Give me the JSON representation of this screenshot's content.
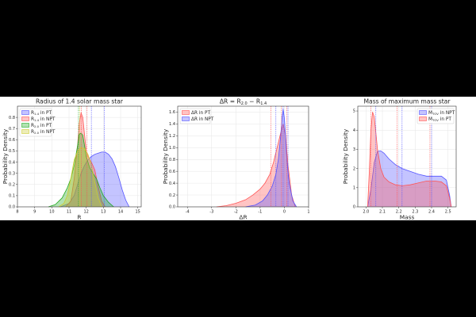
{
  "chart_data": [
    {
      "id": "p1",
      "type": "area",
      "title": "Radius of 1.4 solar mass star",
      "xlabel": "R",
      "ylabel": "Probability Density",
      "xlim": [
        8,
        15.2
      ],
      "ylim": [
        0,
        0.9
      ],
      "xticks": [
        8,
        9,
        10,
        11,
        12,
        13,
        14,
        15
      ],
      "yticks": [
        0.0,
        0.1,
        0.2,
        0.3,
        0.4,
        0.5,
        0.6,
        0.7,
        0.8
      ],
      "legend_position": "top-left",
      "grid": true,
      "series": [
        {
          "name": "R_{1.4} in PT",
          "label_base": "R",
          "label_sub": "1.4",
          "label_rest": " in PT",
          "color": "#5555ff",
          "x": [
            10.5,
            11.0,
            11.3,
            11.5,
            11.7,
            11.9,
            12.1,
            12.3,
            12.5,
            12.7,
            12.9,
            13.1,
            13.3,
            13.5,
            13.7,
            13.9,
            14.1,
            14.3,
            14.5
          ],
          "values": [
            0.0,
            0.03,
            0.1,
            0.2,
            0.3,
            0.37,
            0.42,
            0.45,
            0.47,
            0.48,
            0.49,
            0.49,
            0.47,
            0.43,
            0.36,
            0.26,
            0.15,
            0.06,
            0.0
          ]
        },
        {
          "name": "R_{1.4} in NPT",
          "label_base": "R",
          "label_sub": "1.4",
          "label_rest": " in NPT",
          "color": "#ff5555",
          "x": [
            10.8,
            11.1,
            11.3,
            11.5,
            11.6,
            11.7,
            11.8,
            11.9,
            12.0,
            12.1,
            12.3,
            12.5,
            12.7,
            12.9,
            13.1
          ],
          "values": [
            0.0,
            0.05,
            0.25,
            0.55,
            0.75,
            0.84,
            0.8,
            0.65,
            0.5,
            0.45,
            0.4,
            0.33,
            0.18,
            0.05,
            0.0
          ]
        },
        {
          "name": "R_{2.0} in PT",
          "label_base": "R",
          "label_sub": "2.0",
          "label_rest": " in PT",
          "color": "#22aa22",
          "x": [
            9.8,
            10.2,
            10.6,
            10.9,
            11.1,
            11.3,
            11.5,
            11.6,
            11.7,
            11.8,
            11.9,
            12.0,
            12.2,
            12.4,
            12.6,
            12.8,
            13.0,
            13.3,
            13.6
          ],
          "values": [
            0.0,
            0.02,
            0.08,
            0.17,
            0.25,
            0.37,
            0.55,
            0.65,
            0.66,
            0.64,
            0.55,
            0.45,
            0.35,
            0.3,
            0.25,
            0.17,
            0.1,
            0.04,
            0.0
          ]
        },
        {
          "name": "R_{2.0} in NPT",
          "label_base": "R",
          "label_sub": "2.0",
          "label_rest": " in NPT",
          "color": "#cccc33",
          "x": [
            10.4,
            10.7,
            10.9,
            11.1,
            11.3,
            11.5,
            11.7,
            11.9,
            12.1,
            12.3,
            12.5,
            12.7,
            12.9
          ],
          "values": [
            0.0,
            0.03,
            0.1,
            0.25,
            0.42,
            0.5,
            0.53,
            0.52,
            0.47,
            0.38,
            0.22,
            0.08,
            0.0
          ]
        }
      ],
      "vlines": [
        {
          "x": 11.72,
          "color": "#ff5555",
          "style": "dotted"
        },
        {
          "x": 11.55,
          "color": "#22aa22",
          "style": "dotted"
        },
        {
          "x": 11.62,
          "color": "#cccc33",
          "style": "dotted"
        },
        {
          "x": 12.3,
          "color": "#5555ff",
          "style": "dotted"
        },
        {
          "x": 13.05,
          "color": "#5555ff",
          "style": "dotted"
        },
        {
          "x": 12.05,
          "color": "#ff5555",
          "style": "dotted"
        }
      ]
    },
    {
      "id": "p2",
      "type": "area",
      "title": "ΔR = R_{2.0} − R_{1.4}",
      "title_parts": [
        "ΔR = ",
        "R",
        "2.0",
        " − ",
        "R",
        "1.4"
      ],
      "xlabel": "ΔR",
      "ylabel": "Probability Density",
      "xlim": [
        -4.4,
        1
      ],
      "ylim": [
        0,
        1.7
      ],
      "xticks": [
        -4,
        -3,
        -2,
        -1,
        0,
        1
      ],
      "yticks": [
        0.0,
        0.2,
        0.4,
        0.6,
        0.8,
        1.0,
        1.2,
        1.4,
        1.6
      ],
      "legend_position": "top-left",
      "grid": true,
      "series": [
        {
          "name": "ΔR in PT",
          "label_base": "ΔR",
          "label_sub": "",
          "label_rest": " in PT",
          "color": "#ff5555",
          "x": [
            -2.8,
            -2.4,
            -2.0,
            -1.6,
            -1.3,
            -1.0,
            -0.8,
            -0.6,
            -0.45,
            -0.3,
            -0.15,
            -0.05,
            0.05,
            0.15,
            0.3,
            0.45
          ],
          "values": [
            0.0,
            0.02,
            0.06,
            0.12,
            0.2,
            0.3,
            0.4,
            0.55,
            0.75,
            1.0,
            1.25,
            1.4,
            1.2,
            0.7,
            0.2,
            0.0
          ]
        },
        {
          "name": "ΔR in NPT",
          "label_base": "ΔR",
          "label_sub": "",
          "label_rest": " in NPT",
          "color": "#5555ff",
          "x": [
            -1.6,
            -1.2,
            -0.9,
            -0.7,
            -0.5,
            -0.35,
            -0.25,
            -0.15,
            -0.1,
            -0.05,
            0.0,
            0.05,
            0.1,
            0.2,
            0.35,
            0.5
          ],
          "values": [
            0.0,
            0.03,
            0.1,
            0.2,
            0.35,
            0.55,
            0.8,
            1.2,
            1.5,
            1.65,
            1.5,
            1.2,
            0.8,
            0.4,
            0.1,
            0.0
          ]
        }
      ],
      "vlines": [
        {
          "x": -0.55,
          "color": "#ff5555",
          "style": "dotted"
        },
        {
          "x": -0.35,
          "color": "#5555ff",
          "style": "dotted"
        },
        {
          "x": -0.12,
          "color": "#ff5555",
          "style": "dotted"
        },
        {
          "x": -0.05,
          "color": "#5555ff",
          "style": "dotted"
        },
        {
          "x": 0.1,
          "color": "#ff5555",
          "style": "dotted"
        },
        {
          "x": 0.15,
          "color": "#5555ff",
          "style": "dotted"
        }
      ]
    },
    {
      "id": "p3",
      "type": "area",
      "title": "Mass of maximum mass star",
      "xlabel": "Mass",
      "ylabel": "Probability Density",
      "xlim": [
        1.95,
        2.55
      ],
      "ylim": [
        0,
        5.25
      ],
      "xticks": [
        2.0,
        2.1,
        2.2,
        2.3,
        2.4,
        2.5
      ],
      "yticks": [
        0,
        1,
        2,
        3,
        4,
        5
      ],
      "legend_position": "top-right",
      "grid": true,
      "series": [
        {
          "name": "M_{TOV} in NPT",
          "label_base": "M",
          "label_sub": "TOV",
          "label_rest": " in NPT",
          "color": "#5555ff",
          "x": [
            2.01,
            2.03,
            2.05,
            2.07,
            2.09,
            2.11,
            2.14,
            2.18,
            2.22,
            2.27,
            2.32,
            2.37,
            2.42,
            2.46,
            2.49,
            2.51,
            2.52
          ],
          "values": [
            0.0,
            0.9,
            2.3,
            2.9,
            2.92,
            2.8,
            2.5,
            2.2,
            2.0,
            1.85,
            1.7,
            1.6,
            1.6,
            1.6,
            1.4,
            0.6,
            0.0
          ]
        },
        {
          "name": "M_{TOV} in PT",
          "label_base": "M",
          "label_sub": "TOV",
          "label_rest": " in PT",
          "color": "#ff5555",
          "x": [
            2.01,
            2.02,
            2.03,
            2.04,
            2.05,
            2.06,
            2.07,
            2.09,
            2.11,
            2.14,
            2.18,
            2.22,
            2.27,
            2.32,
            2.37,
            2.42,
            2.46,
            2.49,
            2.51,
            2.52
          ],
          "values": [
            0.0,
            1.8,
            4.0,
            4.95,
            4.7,
            3.9,
            3.0,
            2.0,
            1.55,
            1.3,
            1.15,
            1.1,
            1.15,
            1.25,
            1.35,
            1.35,
            1.3,
            1.1,
            0.45,
            0.0
          ]
        }
      ],
      "vlines": [
        {
          "x": 2.03,
          "color": "#ff5555",
          "style": "dotted"
        },
        {
          "x": 2.06,
          "color": "#5555ff",
          "style": "dotted"
        },
        {
          "x": 2.19,
          "color": "#ff5555",
          "style": "dotted"
        },
        {
          "x": 2.22,
          "color": "#5555ff",
          "style": "dotted"
        },
        {
          "x": 2.39,
          "color": "#ff5555",
          "style": "dotted"
        },
        {
          "x": 2.4,
          "color": "#5555ff",
          "style": "dotted"
        }
      ]
    }
  ]
}
